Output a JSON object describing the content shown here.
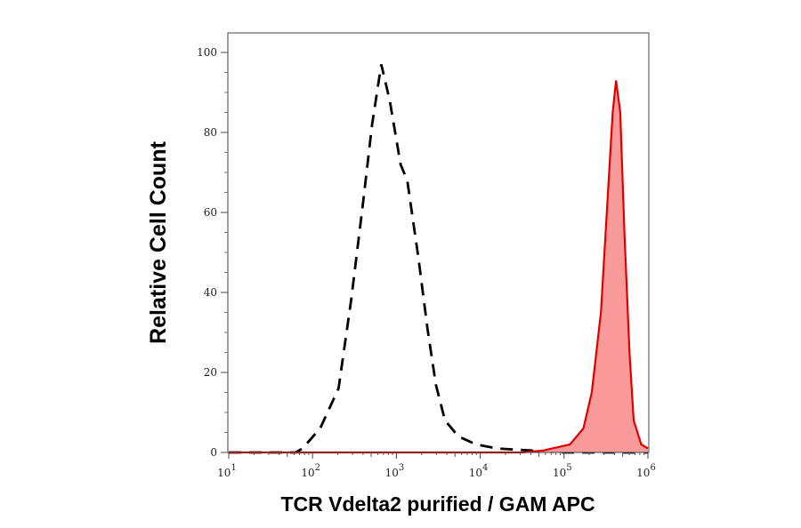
{
  "chart_data": {
    "type": "area",
    "title": "",
    "xlabel": "TCR Vdelta2 purified / GAM APC",
    "ylabel": "Relative Cell Count",
    "x_scale": "log",
    "xlim": [
      10,
      1000000
    ],
    "ylim": [
      0,
      105
    ],
    "x_ticks": [
      {
        "base": "10",
        "exp": "1"
      },
      {
        "base": "10",
        "exp": "2"
      },
      {
        "base": "10",
        "exp": "3"
      },
      {
        "base": "10",
        "exp": "4"
      },
      {
        "base": "10",
        "exp": "5"
      },
      {
        "base": "10",
        "exp": "6"
      }
    ],
    "y_ticks": [
      "0",
      "20",
      "40",
      "60",
      "80",
      "100"
    ],
    "grid": false,
    "legend": "none",
    "series": [
      {
        "style": "dashed-line",
        "color": "#000000",
        "log10_x": [
          1.0,
          1.8,
          1.88,
          2.09,
          2.31,
          2.46,
          2.6,
          2.71,
          2.82,
          2.92,
          3.05,
          3.13,
          3.26,
          3.37,
          3.47,
          3.58,
          3.74,
          3.95,
          4.2,
          4.6,
          5.0,
          6.0
        ],
        "y": [
          0,
          0,
          1,
          6,
          16,
          38,
          62,
          82,
          97,
          88,
          72,
          68,
          49,
          31,
          17,
          8,
          4,
          2,
          1,
          0.5,
          0,
          0
        ]
      },
      {
        "style": "filled",
        "color": "#e00000",
        "fill": "#f99a9a",
        "log10_x": [
          1.0,
          4.5,
          4.75,
          5.07,
          5.23,
          5.33,
          5.44,
          5.51,
          5.58,
          5.62,
          5.67,
          5.72,
          5.78,
          5.83,
          5.92,
          6.0
        ],
        "y": [
          0,
          0,
          0.5,
          2,
          6,
          15,
          35,
          60,
          85,
          93,
          85,
          55,
          25,
          8,
          2,
          1
        ]
      }
    ]
  }
}
